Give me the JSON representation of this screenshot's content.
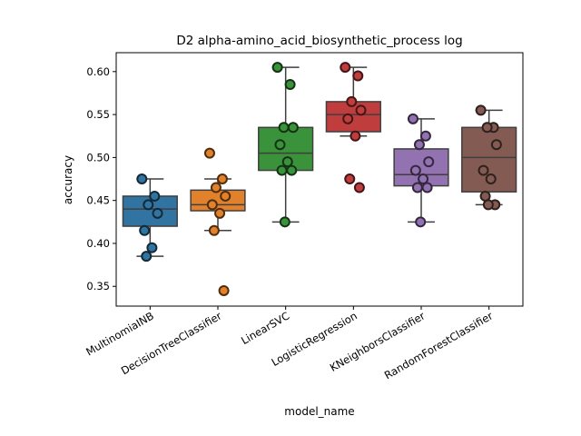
{
  "chart_data": {
    "type": "box",
    "title": "D2 alpha-amino_acid_biosynthetic_process log",
    "xlabel": "model_name",
    "ylabel": "accuracy",
    "ylim": [
      0.327,
      0.622
    ],
    "yticks": [
      0.35,
      0.4,
      0.45,
      0.5,
      0.55,
      0.6
    ],
    "ytick_labels": [
      "0.35",
      "0.40",
      "0.45",
      "0.50",
      "0.55",
      "0.60"
    ],
    "grid": false,
    "categories": [
      "MultinomiaINB",
      "DecisionTreeClassifier",
      "LinearSVC",
      "LogisticRegression",
      "KNeighborsClassifier",
      "RandomForestClassifier"
    ],
    "colors": [
      "#3274a1",
      "#e1812c",
      "#3a923a",
      "#c03d3e",
      "#9372b2",
      "#845b53"
    ],
    "series": [
      {
        "box": {
          "q1": 0.42,
          "median": 0.44,
          "q3": 0.455,
          "whisker_low": 0.385,
          "whisker_high": 0.475
        },
        "points": [
          0.475,
          0.455,
          0.445,
          0.435,
          0.415,
          0.395,
          0.385
        ]
      },
      {
        "box": {
          "q1": 0.438,
          "median": 0.445,
          "q3": 0.462,
          "whisker_low": 0.415,
          "whisker_high": 0.475
        },
        "points": [
          0.505,
          0.475,
          0.465,
          0.455,
          0.445,
          0.435,
          0.415,
          0.345
        ]
      },
      {
        "box": {
          "q1": 0.485,
          "median": 0.505,
          "q3": 0.535,
          "whisker_low": 0.425,
          "whisker_high": 0.605
        },
        "points": [
          0.605,
          0.585,
          0.535,
          0.535,
          0.515,
          0.495,
          0.485,
          0.485,
          0.425
        ]
      },
      {
        "box": {
          "q1": 0.53,
          "median": 0.55,
          "q3": 0.565,
          "whisker_low": 0.525,
          "whisker_high": 0.605
        },
        "points": [
          0.605,
          0.595,
          0.565,
          0.555,
          0.545,
          0.525,
          0.475,
          0.465
        ]
      },
      {
        "box": {
          "q1": 0.467,
          "median": 0.48,
          "q3": 0.51,
          "whisker_low": 0.425,
          "whisker_high": 0.545
        },
        "points": [
          0.545,
          0.525,
          0.515,
          0.495,
          0.485,
          0.475,
          0.465,
          0.465,
          0.425
        ]
      },
      {
        "box": {
          "q1": 0.46,
          "median": 0.5,
          "q3": 0.535,
          "whisker_low": 0.445,
          "whisker_high": 0.555
        },
        "points": [
          0.555,
          0.535,
          0.535,
          0.515,
          0.485,
          0.475,
          0.455,
          0.445,
          0.445
        ]
      }
    ]
  }
}
